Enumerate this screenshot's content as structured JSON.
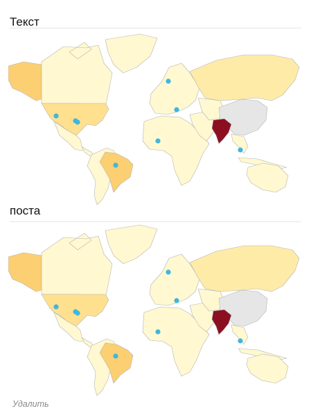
{
  "sections": [
    {
      "title": "Текст"
    },
    {
      "title": "поста"
    }
  ],
  "actions": {
    "delete_label": "Удалить"
  },
  "icons": {
    "settings": "gear-icon",
    "marker": "location-dot-icon"
  },
  "colors": {
    "ocean": "#ffffff",
    "no_data": "#e6e6e6",
    "level_1": "#fff8d0",
    "level_2": "#ffeba8",
    "level_3": "#ffe08f",
    "level_4": "#fbcf72",
    "level_5": "#f7b85a",
    "top_value": "#8c0f21",
    "border": "#b4b4b4",
    "marker": "#3fb6dd"
  },
  "map_regions": [
    {
      "name": "Alaska",
      "level": "level_4"
    },
    {
      "name": "Canada",
      "level": "level_1"
    },
    {
      "name": "United States",
      "level": "level_3"
    },
    {
      "name": "Mexico",
      "level": "level_1"
    },
    {
      "name": "Central America",
      "level": "level_1"
    },
    {
      "name": "Greenland",
      "level": "level_1"
    },
    {
      "name": "South America",
      "level": "level_1"
    },
    {
      "name": "Brazil",
      "level": "level_4"
    },
    {
      "name": "Europe",
      "level": "level_1"
    },
    {
      "name": "Africa",
      "level": "level_1"
    },
    {
      "name": "Middle East",
      "level": "level_1"
    },
    {
      "name": "Russia",
      "level": "level_2"
    },
    {
      "name": "Central Asia",
      "level": "level_1"
    },
    {
      "name": "China",
      "level": "no_data"
    },
    {
      "name": "India",
      "level": "top_value"
    },
    {
      "name": "Southeast Asia",
      "level": "level_1"
    },
    {
      "name": "Australia",
      "level": "level_1"
    }
  ]
}
